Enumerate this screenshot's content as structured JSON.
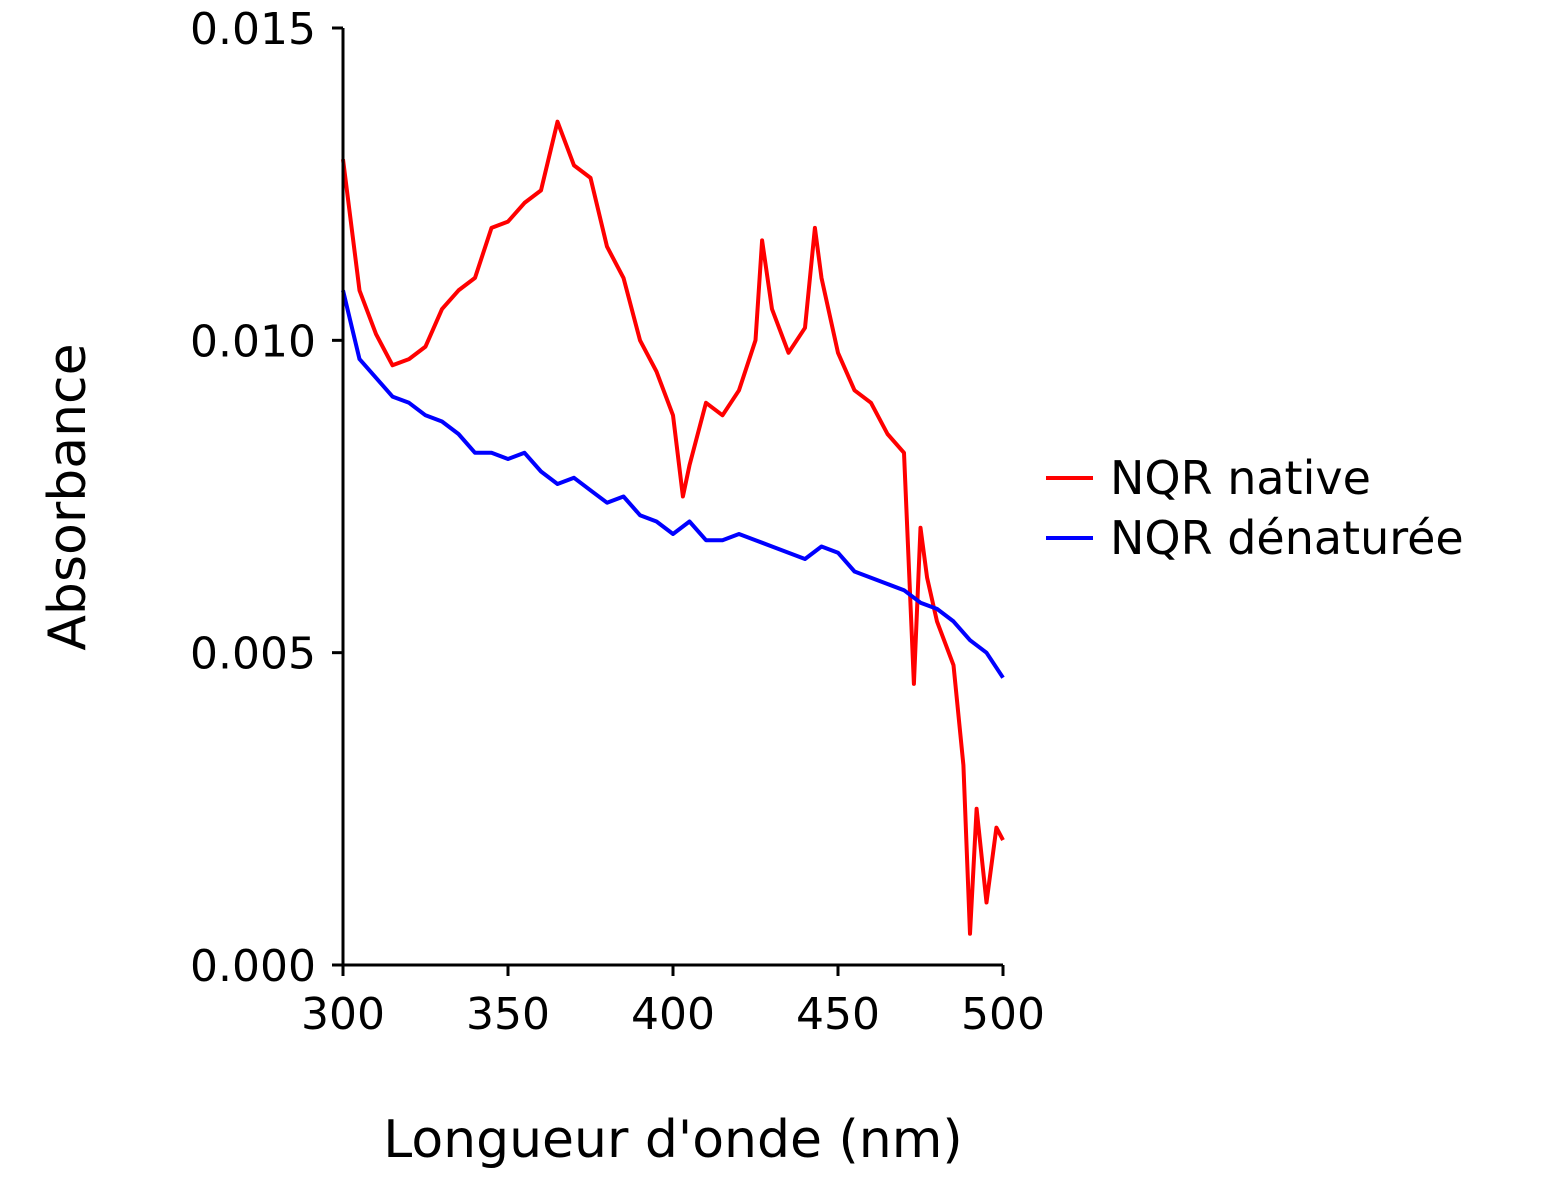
{
  "chart_data": {
    "type": "line",
    "xlabel": "Longueur d'onde (nm)",
    "ylabel": "Absorbance",
    "xlim": [
      300,
      500
    ],
    "ylim": [
      0.0,
      0.015
    ],
    "xticks": [
      300,
      350,
      400,
      450,
      500
    ],
    "xtick_labels": [
      "300",
      "350",
      "400",
      "450",
      "500"
    ],
    "yticks": [
      0.0,
      0.005,
      0.01,
      0.015
    ],
    "ytick_labels": [
      "0.000",
      "0.005",
      "0.010",
      "0.015"
    ],
    "grid": false,
    "legend_position": "center-right",
    "series": [
      {
        "name": "NQR native",
        "color": "#ff0000",
        "x": [
          300,
          305,
          310,
          315,
          320,
          325,
          330,
          335,
          340,
          345,
          350,
          355,
          360,
          365,
          370,
          375,
          380,
          385,
          390,
          395,
          400,
          403,
          405,
          410,
          415,
          420,
          425,
          427,
          430,
          435,
          440,
          443,
          445,
          450,
          455,
          460,
          465,
          470,
          473,
          475,
          477,
          480,
          485,
          488,
          490,
          492,
          495,
          498,
          500
        ],
        "y": [
          0.0129,
          0.0108,
          0.0101,
          0.0096,
          0.0097,
          0.0099,
          0.0105,
          0.0108,
          0.011,
          0.0118,
          0.0119,
          0.0122,
          0.0124,
          0.0135,
          0.0128,
          0.0126,
          0.0115,
          0.011,
          0.01,
          0.0095,
          0.0088,
          0.0075,
          0.008,
          0.009,
          0.0088,
          0.0092,
          0.01,
          0.0116,
          0.0105,
          0.0098,
          0.0102,
          0.0118,
          0.011,
          0.0098,
          0.0092,
          0.009,
          0.0085,
          0.0082,
          0.0045,
          0.007,
          0.0062,
          0.0055,
          0.0048,
          0.0032,
          0.0005,
          0.0025,
          0.001,
          0.0022,
          0.002
        ]
      },
      {
        "name": "NQR dénaturée",
        "color": "#0000ff",
        "x": [
          300,
          305,
          310,
          315,
          320,
          325,
          330,
          335,
          340,
          345,
          350,
          355,
          360,
          365,
          370,
          375,
          380,
          385,
          390,
          395,
          400,
          405,
          410,
          415,
          420,
          425,
          430,
          435,
          440,
          445,
          450,
          455,
          460,
          465,
          470,
          475,
          480,
          485,
          490,
          495,
          500
        ],
        "y": [
          0.0108,
          0.0097,
          0.0094,
          0.0091,
          0.009,
          0.0088,
          0.0087,
          0.0085,
          0.0082,
          0.0082,
          0.0081,
          0.0082,
          0.0079,
          0.0077,
          0.0078,
          0.0076,
          0.0074,
          0.0075,
          0.0072,
          0.0071,
          0.0069,
          0.0071,
          0.0068,
          0.0068,
          0.0069,
          0.0068,
          0.0067,
          0.0066,
          0.0065,
          0.0067,
          0.0066,
          0.0063,
          0.0062,
          0.0061,
          0.006,
          0.0058,
          0.0057,
          0.0055,
          0.0052,
          0.005,
          0.0046
        ]
      }
    ]
  }
}
